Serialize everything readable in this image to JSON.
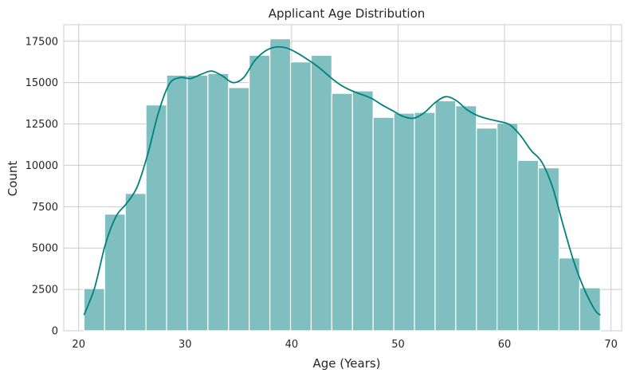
{
  "chart_data": {
    "type": "bar",
    "subtype": "histogram_with_kde",
    "title": "Applicant Age Distribution",
    "xlabel": "Age (Years)",
    "ylabel": "Count",
    "xlim": [
      18.6,
      71.0
    ],
    "ylim": [
      0,
      18500
    ],
    "xticks": [
      20,
      30,
      40,
      50,
      60,
      70
    ],
    "yticks": [
      0,
      2500,
      5000,
      7500,
      10000,
      12500,
      15000,
      17500
    ],
    "grid": true,
    "bar_color": "#7fbfbf",
    "line_color": "#008080",
    "bin_edges": [
      20.5,
      22.44,
      24.38,
      26.32,
      28.26,
      30.2,
      32.14,
      34.08,
      36.02,
      37.96,
      39.9,
      41.84,
      43.78,
      45.72,
      47.66,
      49.6,
      51.54,
      53.48,
      55.42,
      57.36,
      59.3,
      61.24,
      63.18,
      65.12,
      67.06,
      69.0
    ],
    "counts": [
      2550,
      7050,
      8300,
      13650,
      15450,
      15450,
      15550,
      14700,
      16650,
      17650,
      16250,
      16650,
      14350,
      14500,
      12900,
      13150,
      13200,
      13900,
      13600,
      12250,
      12550,
      10300,
      9850,
      4400,
      2600
    ],
    "kde": {
      "x": [
        20.5,
        21.5,
        22.5,
        23.5,
        24.5,
        25.5,
        26.5,
        27.5,
        28.5,
        29.5,
        30.5,
        31.5,
        32.5,
        33.5,
        34.5,
        35.5,
        36.5,
        37.5,
        38.5,
        39.5,
        40.5,
        41.5,
        42.5,
        43.5,
        44.5,
        45.5,
        46.5,
        47.5,
        48.5,
        49.5,
        50.5,
        51.5,
        52.5,
        53.5,
        54.5,
        55.5,
        56.5,
        57.5,
        58.5,
        59.5,
        60.5,
        61.5,
        62.5,
        63.5,
        64.5,
        65.5,
        66.5,
        67.5,
        68.5,
        69.0
      ],
      "y": [
        950,
        2600,
        5200,
        6900,
        7700,
        8700,
        10700,
        13200,
        14900,
        15300,
        15250,
        15500,
        15700,
        15400,
        15000,
        15300,
        16300,
        16900,
        17150,
        17100,
        16800,
        16400,
        15950,
        15400,
        14900,
        14550,
        14300,
        14050,
        13650,
        13300,
        12950,
        12850,
        13200,
        13800,
        14150,
        13900,
        13350,
        13000,
        12800,
        12650,
        12450,
        11800,
        10900,
        10200,
        8700,
        6400,
        4200,
        2500,
        1250,
        950
      ]
    }
  }
}
